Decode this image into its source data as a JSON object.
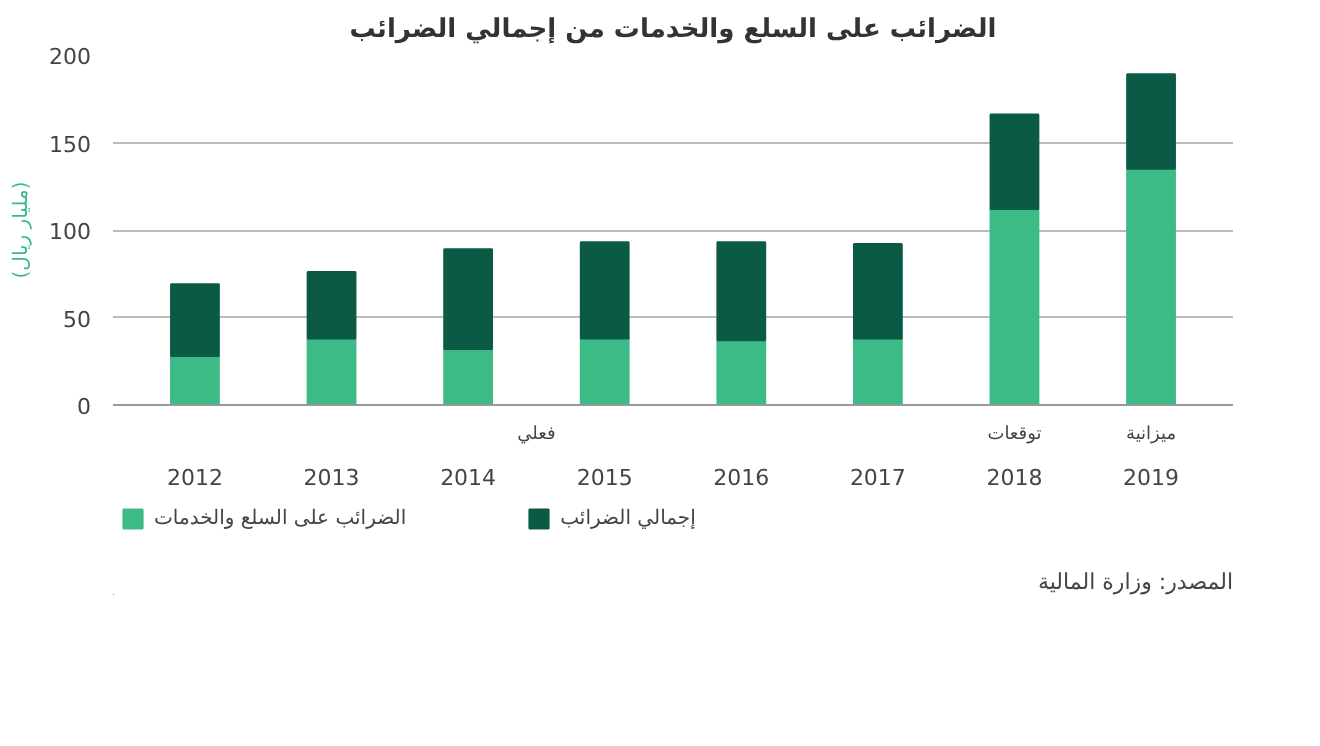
{
  "chart_data": {
    "type": "bar",
    "title": "الضرائب على السلع والخدمات من إجمالي الضرائب",
    "ylabel": "(مليار ريال)",
    "categories": [
      "2012",
      "2013",
      "2014",
      "2015",
      "2016",
      "2017",
      "2018",
      "2019"
    ],
    "stacked": true,
    "series": [
      {
        "name": "الضرائب على السلع والخدمات",
        "color": "#3dbb87",
        "values": [
          28,
          38,
          32,
          38,
          37,
          38,
          112,
          135
        ]
      },
      {
        "name": "إجمالي الضرائب",
        "color": "#0b5a45",
        "values": [
          41,
          38,
          57,
          55,
          56,
          54,
          54,
          54
        ]
      }
    ],
    "ylim": [
      0,
      200
    ],
    "yticks": [
      0,
      50,
      100,
      150,
      200
    ],
    "grid": "y",
    "legend": "bottom",
    "annotations": [
      "فعلي",
      "توقعات",
      "ميزانية",
      "المصدر: وزارة المالية"
    ]
  }
}
